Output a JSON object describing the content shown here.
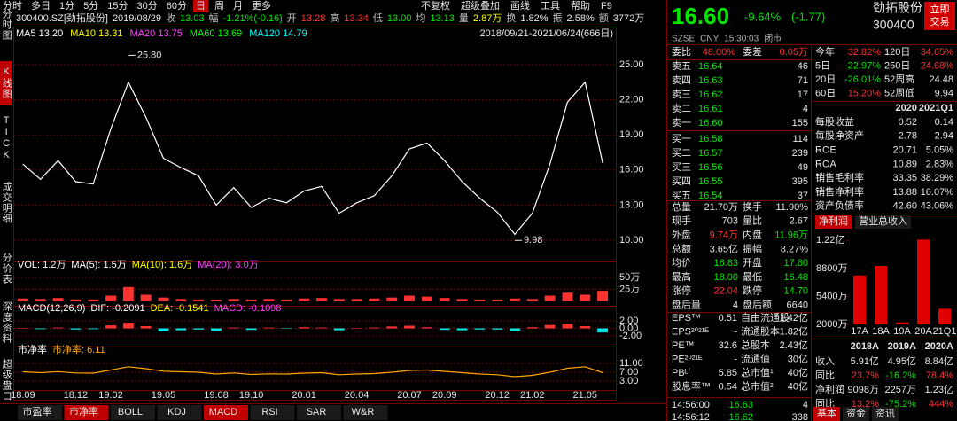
{
  "toolbar": {
    "left": [
      "分时",
      "多日",
      "1分",
      "5分",
      "15分",
      "30分",
      "60分",
      "日",
      "周",
      "月",
      "更多"
    ],
    "active": 7,
    "right": [
      "不复权",
      "超级叠加",
      "画线",
      "工具",
      "帮助",
      "F9"
    ]
  },
  "sidebar": {
    "items": [
      "分时图",
      "K线图",
      "TICK",
      "成交明细",
      "分价表",
      "深度资料",
      "超级盘口"
    ],
    "active": 1
  },
  "info_bar": [
    {
      "text": "300400.SZ[劲拓股份]",
      "color": "#e6e6e6"
    },
    {
      "text": "2019/08/29",
      "color": "#e6e6e6"
    },
    {
      "text": "收",
      "color": "#c0c0c0"
    },
    {
      "text": "13.03",
      "color": "#00e600"
    },
    {
      "text": "幅",
      "color": "#c0c0c0"
    },
    {
      "text": "-1.21%(-0.16)",
      "color": "#00e600"
    },
    {
      "text": "开",
      "color": "#c0c0c0"
    },
    {
      "text": "13.28",
      "color": "#ff3232"
    },
    {
      "text": "高",
      "color": "#c0c0c0"
    },
    {
      "text": "13.34",
      "color": "#ff3232"
    },
    {
      "text": "低",
      "color": "#c0c0c0"
    },
    {
      "text": "13.00",
      "color": "#00e600"
    },
    {
      "text": "均",
      "color": "#c0c0c0"
    },
    {
      "text": "13.13",
      "color": "#00e600"
    },
    {
      "text": "量",
      "color": "#c0c0c0"
    },
    {
      "text": "2.87万",
      "color": "#ffff00"
    },
    {
      "text": "换",
      "color": "#c0c0c0"
    },
    {
      "text": "1.82%",
      "color": "#e6e6e6"
    },
    {
      "text": "振",
      "color": "#c0c0c0"
    },
    {
      "text": "2.58%",
      "color": "#e6e6e6"
    },
    {
      "text": "额",
      "color": "#c0c0c0"
    },
    {
      "text": "3772万",
      "color": "#e6e6e6"
    }
  ],
  "ma_bar": {
    "items": [
      {
        "text": "MA5 13.20",
        "color": "#ffffff"
      },
      {
        "text": "MA10 13.31",
        "color": "#ffff00"
      },
      {
        "text": "MA20 13.75",
        "color": "#ff40ff"
      },
      {
        "text": "MA60 13.69",
        "color": "#00ff00"
      },
      {
        "text": "MA120 14.79",
        "color": "#00ffff"
      }
    ],
    "range": "2018/09/21-2021/06/24(666日)"
  },
  "chart_data": [
    {
      "type": "line",
      "categories": [
        "18.09",
        null,
        null,
        "18.12",
        null,
        "19.02",
        null,
        null,
        "19.05",
        null,
        null,
        "19.08",
        null,
        "19.10",
        null,
        null,
        "20.01",
        null,
        null,
        "20.04",
        null,
        null,
        "20.07",
        null,
        "20.09",
        null,
        null,
        "20.12",
        null,
        "21.02",
        null,
        null,
        "21.05",
        null
      ],
      "series": [
        {
          "color": "#ffffff",
          "values": [
            16.5,
            15.2,
            16.8,
            15.0,
            14.8,
            19.5,
            23.5,
            20.5,
            17.0,
            16.2,
            15.5,
            13.0,
            14.5,
            12.8,
            13.6,
            13.2,
            14.2,
            14.6,
            12.3,
            13.2,
            13.8,
            15.5,
            17.8,
            18.3,
            16.8,
            15.0,
            13.6,
            12.4,
            10.5,
            12.3,
            16.5,
            21.8,
            23.5,
            16.6
          ]
        }
      ],
      "ylim": [
        8.56,
        27.12
      ],
      "yticks": [
        {
          "value": 25,
          "label": "25.00"
        },
        {
          "value": 22,
          "label": "22.00"
        },
        {
          "value": 19,
          "label": "19.00"
        },
        {
          "value": 16,
          "label": "16.00"
        },
        {
          "value": 13,
          "label": "13.00"
        },
        {
          "value": 10,
          "label": "10.00"
        }
      ],
      "annotations": [
        {
          "label": "25.80",
          "value": 25.8,
          "x": 6
        },
        {
          "label": "9.98",
          "value": 9.98,
          "x": 28
        }
      ],
      "grid": true
    },
    {
      "type": "bar",
      "header": [
        {
          "text": "VOL: 1.2万",
          "color": "#ffffff"
        },
        {
          "text": "MA(5): 1.5万",
          "color": "#ffffff"
        },
        {
          "text": "MA(10): 1.6万",
          "color": "#ffff00"
        },
        {
          "text": "MA(20): 3.0万",
          "color": "#ff40ff"
        }
      ],
      "values": [
        6,
        5,
        7,
        4,
        4,
        12,
        30,
        14,
        8,
        5,
        4,
        3,
        5,
        4,
        5,
        4,
        6,
        7,
        5,
        5,
        6,
        8,
        12,
        10,
        7,
        5,
        4,
        4,
        6,
        5,
        12,
        18,
        14,
        22
      ],
      "color": "#ff3232",
      "ylim": [
        0,
        63
      ],
      "yticks": [
        {
          "value": 50,
          "label": "50万"
        },
        {
          "value": 25,
          "label": "25万"
        }
      ],
      "grid": true
    },
    {
      "type": "bar",
      "header": [
        {
          "text": "MACD(12,26,9)",
          "color": "#ffffff"
        },
        {
          "text": "DIF: -0.2091",
          "color": "#ffffff"
        },
        {
          "text": "DEA: -0.1541",
          "color": "#ffff00"
        },
        {
          "text": "MACD: -0.1098",
          "color": "#ff40ff"
        }
      ],
      "values": [
        0.1,
        -0.2,
        0.2,
        -0.3,
        -0.2,
        0.8,
        1.5,
        0.6,
        -0.8,
        -0.5,
        -0.3,
        -0.6,
        0.2,
        -0.4,
        0.2,
        -0.1,
        0.3,
        0.2,
        -0.5,
        0.1,
        0.2,
        0.5,
        0.7,
        0.3,
        -0.4,
        -0.5,
        -0.3,
        -0.3,
        -0.6,
        0.3,
        0.9,
        1.2,
        0.6,
        -1.1
      ],
      "up_color": "#ff3232",
      "down_color": "#00e6e6",
      "ylim": [
        -3.65,
        3.65
      ],
      "yticks": [
        {
          "value": 2,
          "label": "2.00"
        },
        {
          "value": 0,
          "label": "0.00"
        },
        {
          "value": -2,
          "label": "-2.00"
        }
      ],
      "grid": true
    },
    {
      "type": "line",
      "header": [
        {
          "text": "市净率",
          "color": "#ffffff"
        },
        {
          "text": "市净率: 6.11",
          "color": "#ffa500"
        }
      ],
      "series": [
        {
          "color": "#ffa500",
          "values": [
            7.2,
            6.8,
            7.3,
            6.7,
            6.6,
            8.0,
            9.5,
            8.6,
            7.5,
            7.2,
            7.0,
            6.2,
            6.7,
            6.0,
            6.3,
            6.2,
            6.6,
            6.8,
            5.9,
            6.2,
            6.4,
            7.0,
            7.8,
            8.0,
            7.4,
            6.8,
            6.2,
            5.9,
            5.0,
            5.6,
            7.0,
            8.8,
            9.5,
            6.8
          ]
        }
      ],
      "ylim": [
        -1,
        14.2
      ],
      "yticks": [
        {
          "value": 11,
          "label": "11.00"
        },
        {
          "value": 7,
          "label": "7.00"
        },
        {
          "value": 3,
          "label": "3.00"
        }
      ],
      "grid": true
    },
    {
      "type": "bar",
      "categories": [
        "17A",
        "18A",
        "19A",
        "20A",
        "21Q1"
      ],
      "values": [
        7950,
        9098,
        2257,
        12300,
        3900
      ],
      "color": "#e00000",
      "ylim": [
        2000,
        13200
      ],
      "yticks": [
        {
          "value": 12200,
          "label": "1.22亿"
        },
        {
          "value": 8800,
          "label": "8800万"
        },
        {
          "value": 5400,
          "label": "5400万"
        },
        {
          "value": 2000,
          "label": "2000万"
        }
      ]
    }
  ],
  "indicator_tabs": {
    "items": [
      "市盈率",
      "市净率",
      "BOLL",
      "KDJ",
      "MACD",
      "RSI",
      "SAR",
      "W&R"
    ],
    "active": [
      1,
      4
    ]
  },
  "quote": {
    "price": "16.60",
    "change_pct": "-9.64%",
    "change": "(-1.77)",
    "name": "劲拓股份",
    "code": "300400",
    "trade_button": [
      "立即",
      "交易"
    ],
    "status": [
      "SZSE",
      "CNY",
      "15:30:03",
      "闭市"
    ],
    "committee": [
      "委比",
      "48.00%",
      "委差",
      "0.05万"
    ],
    "order_book": [
      [
        "卖五",
        "16.64",
        "46"
      ],
      [
        "卖四",
        "16.63",
        "71"
      ],
      [
        "卖三",
        "16.62",
        "17"
      ],
      [
        "卖二",
        "16.61",
        "4"
      ],
      [
        "卖一",
        "16.60",
        "155"
      ],
      [
        "买一",
        "16.58",
        "114"
      ],
      [
        "买二",
        "16.57",
        "239"
      ],
      [
        "买三",
        "16.56",
        "49"
      ],
      [
        "买四",
        "16.55",
        "395"
      ],
      [
        "买五",
        "16.54",
        "37"
      ]
    ],
    "stats": [
      [
        "总量",
        "21.70万",
        "换手",
        "11.90%"
      ],
      [
        "现手",
        "703",
        "量比",
        "2.67"
      ],
      [
        "外盘",
        "9.74万",
        "内盘",
        "11.96万"
      ],
      [
        "总额",
        "3.65亿",
        "振幅",
        "8.27%"
      ],
      [
        "均价",
        "16.83",
        "开盘",
        "17.80"
      ],
      [
        "最高",
        "18.00",
        "最低",
        "16.48"
      ],
      [
        "涨停",
        "22.04",
        "跌停",
        "14.70"
      ],
      [
        "盘后量",
        "4",
        "盘后额",
        "6640"
      ]
    ],
    "stats_colors": [
      [
        "#e6e6e6",
        "#e6e6e6"
      ],
      [
        "#e6e6e6",
        "#e6e6e6"
      ],
      [
        "#ff3232",
        "#00e600"
      ],
      [
        "#e6e6e6",
        "#e6e6e6"
      ],
      [
        "#00e600",
        "#00e600"
      ],
      [
        "#00e600",
        "#00e600"
      ],
      [
        "#ff3232",
        "#00e600"
      ],
      [
        "#e6e6e6",
        "#e6e6e6"
      ]
    ],
    "shares": [
      [
        "EPS™",
        "0.51",
        "自由流通股",
        "1.42亿"
      ],
      [
        "EPS²⁰²¹ᴱ",
        "-",
        "流通股本",
        "1.82亿"
      ],
      [
        "PE™",
        "32.6",
        "总股本",
        "2.43亿"
      ],
      [
        "PE²⁰²¹ᴱ",
        "-",
        "流通值",
        "30亿"
      ],
      [
        "PBᴸᶠ",
        "5.85",
        "总市值¹",
        "40亿"
      ],
      [
        "股息率™",
        "0.54",
        "总市值²",
        "40亿"
      ]
    ],
    "trades": [
      [
        "14:56:00",
        "16.63",
        "4"
      ],
      [
        "14:56:12",
        "16.62",
        "338"
      ]
    ]
  },
  "returns": [
    [
      "今年",
      "32.82%",
      "120日",
      "34.65%"
    ],
    [
      "5日",
      "-22.97%",
      "250日",
      "24.68%"
    ],
    [
      "20日",
      "-26.01%",
      "52周高",
      "24.48"
    ],
    [
      "60日",
      "15.20%",
      "52周低",
      "9.94"
    ]
  ],
  "fundamentals": {
    "header": [
      "2020",
      "2021Q1"
    ],
    "rows": [
      [
        "每股收益",
        "0.52",
        "0.14"
      ],
      [
        "每股净资产",
        "2.78",
        "2.94"
      ],
      [
        "ROE",
        "20.71",
        "5.05%"
      ],
      [
        "ROA",
        "10.89",
        "2.83%"
      ],
      [
        "销售毛利率",
        "33.35",
        "38.29%"
      ],
      [
        "销售净利率",
        "13.88",
        "16.07%"
      ],
      [
        "资产负债率",
        "42.60",
        "43.06%"
      ]
    ]
  },
  "profit_tabs": {
    "items": [
      "净利润",
      "营业总收入"
    ],
    "active": 0
  },
  "annual": {
    "header": [
      "2018A",
      "2019A",
      "2020A"
    ],
    "rows": [
      [
        "收入",
        "5.91亿",
        "4.95亿",
        "8.84亿"
      ],
      [
        "同比",
        "23.7%",
        "-16.2%",
        "78.4%"
      ],
      [
        "净利润",
        "9098万",
        "2257万",
        "1.23亿"
      ],
      [
        "同比",
        "13.2%",
        "-75.2%",
        "444%"
      ]
    ]
  },
  "bottom_tabs": {
    "items": [
      "基本",
      "资金",
      "资讯"
    ],
    "active": 0
  }
}
